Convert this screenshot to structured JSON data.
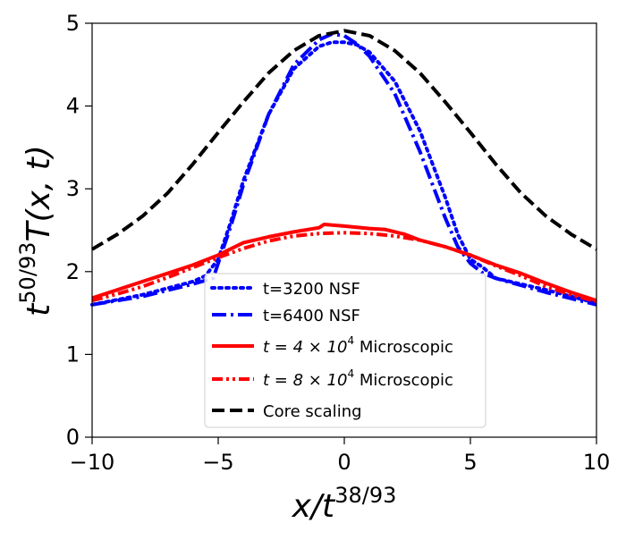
{
  "chart_data": {
    "type": "line",
    "title": "",
    "xlabel": {
      "main": "x/t",
      "sup": "38/93"
    },
    "ylabel": {
      "prefix": "t",
      "sup": "50/93",
      "main": "T(x, t)"
    },
    "xlim": [
      -10,
      10
    ],
    "ylim": [
      0,
      5
    ],
    "xticks": [
      -10,
      -5,
      0,
      5,
      10
    ],
    "xtick_labels": [
      "−10",
      "−5",
      "0",
      "5",
      "10"
    ],
    "yticks": [
      0,
      1,
      2,
      3,
      4,
      5
    ],
    "ytick_labels": [
      "0",
      "1",
      "2",
      "3",
      "4",
      "5"
    ],
    "grid": false,
    "legend_position": "lower-center",
    "series": [
      {
        "name": "t=3200 NSF",
        "label_parts": {
          "pre": "t=3200 NSF",
          "sup": "",
          "post": ""
        },
        "color": "#0000ff",
        "style": "dotted",
        "x": [
          -10,
          -8,
          -6,
          -5.5,
          -5,
          -4.5,
          -4,
          -3,
          -2,
          -1,
          -0.5,
          0,
          0.5,
          1,
          2,
          3,
          4,
          4.5,
          5,
          5.5,
          6,
          8,
          10
        ],
        "y": [
          1.6,
          1.72,
          1.88,
          1.95,
          2.15,
          2.6,
          3.1,
          3.9,
          4.45,
          4.72,
          4.77,
          4.77,
          4.74,
          4.65,
          4.3,
          3.7,
          2.9,
          2.45,
          2.15,
          2.05,
          1.92,
          1.78,
          1.62
        ]
      },
      {
        "name": "t=6400 NSF",
        "label_parts": {
          "pre": "t=6400 NSF",
          "sup": "",
          "post": ""
        },
        "color": "#0000ff",
        "style": "dash-dot",
        "x": [
          -10,
          -8,
          -6,
          -5.2,
          -5,
          -4.5,
          -4,
          -3,
          -2,
          -1,
          -0.5,
          0,
          0.5,
          1,
          2,
          3,
          4,
          4.5,
          5,
          5.5,
          6,
          8,
          10
        ],
        "y": [
          1.6,
          1.7,
          1.85,
          1.92,
          2.1,
          2.55,
          3.05,
          3.9,
          4.5,
          4.8,
          4.87,
          4.85,
          4.75,
          4.6,
          4.15,
          3.45,
          2.65,
          2.3,
          2.1,
          1.98,
          1.92,
          1.75,
          1.6
        ]
      },
      {
        "name": "t = 4 × 10^4 Microscopic",
        "label_parts": {
          "pre": "t = 4 × 10",
          "sup": "4",
          "post": " Microscopic"
        },
        "color": "#ff0000",
        "style": "solid",
        "x": [
          -10,
          -9,
          -8,
          -7,
          -6,
          -5,
          -4,
          -3,
          -2,
          -1,
          -0.8,
          0,
          1,
          1.6,
          2.4,
          3,
          4,
          5,
          6,
          7,
          8,
          9,
          10
        ],
        "y": [
          1.68,
          1.78,
          1.88,
          1.98,
          2.08,
          2.2,
          2.35,
          2.42,
          2.48,
          2.53,
          2.57,
          2.55,
          2.52,
          2.51,
          2.45,
          2.38,
          2.3,
          2.2,
          2.08,
          1.98,
          1.86,
          1.75,
          1.65
        ]
      },
      {
        "name": "t = 8 × 10^4 Microscopic",
        "label_parts": {
          "pre": "t = 8 × 10",
          "sup": "4",
          "post": " Microscopic"
        },
        "color": "#ff0000",
        "style": "dash-dot-dot",
        "x": [
          -10,
          -9,
          -8,
          -7,
          -6,
          -5,
          -4,
          -3,
          -2,
          -1,
          0,
          1,
          2,
          3,
          4,
          5,
          6,
          7,
          8,
          9,
          10
        ],
        "y": [
          1.65,
          1.73,
          1.82,
          1.93,
          2.05,
          2.17,
          2.28,
          2.37,
          2.43,
          2.46,
          2.47,
          2.46,
          2.43,
          2.38,
          2.3,
          2.2,
          2.07,
          1.95,
          1.82,
          1.72,
          1.64
        ]
      },
      {
        "name": "Core scaling",
        "label_parts": {
          "pre": "Core scaling",
          "sup": "",
          "post": ""
        },
        "color": "#000000",
        "style": "dashed",
        "x": [
          -10,
          -9,
          -8,
          -7,
          -6,
          -5,
          -4,
          -3,
          -2,
          -1,
          0,
          1,
          2,
          3,
          4,
          5,
          6,
          7,
          8,
          9,
          10
        ],
        "y": [
          2.27,
          2.45,
          2.67,
          2.95,
          3.3,
          3.68,
          4.05,
          4.4,
          4.67,
          4.85,
          4.91,
          4.85,
          4.67,
          4.4,
          4.05,
          3.68,
          3.3,
          2.95,
          2.67,
          2.45,
          2.27
        ]
      }
    ]
  }
}
